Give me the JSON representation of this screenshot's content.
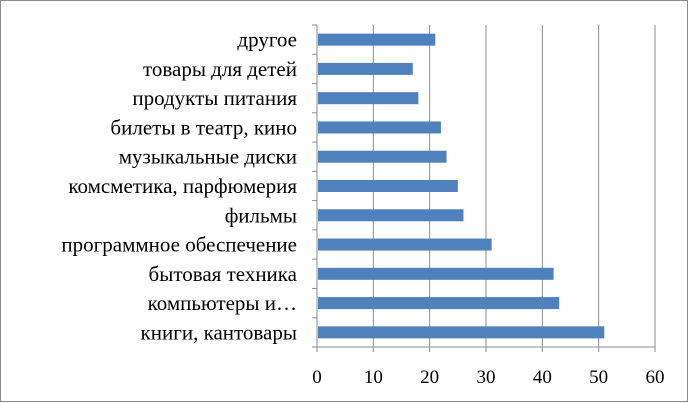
{
  "chart_data": {
    "type": "bar",
    "orientation": "horizontal",
    "categories": [
      "книги,  кантовары",
      "компьютеры и…",
      "бытовая техника",
      "программное обеспечение",
      "фильмы",
      "комсметика, парфюмерия",
      "музыкальные диски",
      "билеты в театр, кино",
      "продукты питания",
      "товары для детей",
      "другое"
    ],
    "values": [
      51,
      43,
      42,
      31,
      26,
      25,
      23,
      22,
      18,
      17,
      21
    ],
    "xlim": [
      0,
      60
    ],
    "xticks": [
      "0",
      "10",
      "20",
      "30",
      "40",
      "50",
      "60"
    ],
    "grid": "vertical",
    "legend": "none",
    "title": "",
    "xlabel": "",
    "ylabel": "",
    "colors": {
      "bar": "#4f81bd",
      "grid": "#8c8c8c",
      "axis": "#8c8c8c"
    }
  }
}
